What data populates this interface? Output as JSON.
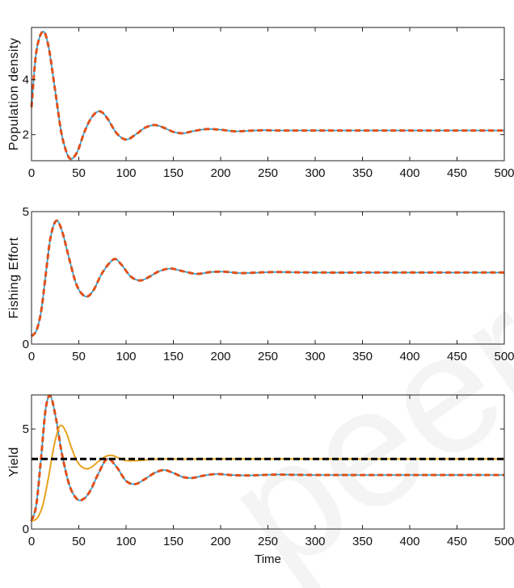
{
  "chart_data": [
    {
      "type": "line",
      "ylabel": "Population density",
      "xlabel": "",
      "xlim": [
        0,
        500
      ],
      "ylim": [
        1.05,
        5.9
      ],
      "xticks": [
        0,
        50,
        100,
        150,
        200,
        250,
        300,
        350,
        400,
        450,
        500
      ],
      "yticks": [
        2,
        4
      ],
      "grid": false,
      "series": [
        {
          "color": "#1f9fd9",
          "style": "solid",
          "x": [
            0,
            5,
            12,
            18,
            25,
            32,
            40,
            48,
            56,
            64,
            72,
            80,
            90,
            100,
            110,
            120,
            130,
            140,
            150,
            160,
            170,
            185,
            200,
            215,
            230,
            245,
            260,
            300,
            400,
            500
          ],
          "y": [
            3.0,
            5.0,
            5.75,
            5.2,
            3.6,
            2.0,
            1.15,
            1.35,
            2.1,
            2.65,
            2.85,
            2.6,
            2.05,
            1.82,
            2.0,
            2.25,
            2.35,
            2.25,
            2.1,
            2.05,
            2.12,
            2.2,
            2.18,
            2.12,
            2.14,
            2.16,
            2.15,
            2.15,
            2.15,
            2.15
          ]
        },
        {
          "color": "#e0501a",
          "style": "dashed",
          "x": [
            0,
            5,
            12,
            18,
            25,
            32,
            40,
            48,
            56,
            64,
            72,
            80,
            90,
            100,
            110,
            120,
            130,
            140,
            150,
            160,
            170,
            185,
            200,
            215,
            230,
            245,
            260,
            300,
            400,
            500
          ],
          "y": [
            3.0,
            5.0,
            5.75,
            5.2,
            3.6,
            2.0,
            1.15,
            1.35,
            2.1,
            2.65,
            2.85,
            2.6,
            2.05,
            1.82,
            2.0,
            2.25,
            2.35,
            2.25,
            2.1,
            2.05,
            2.12,
            2.2,
            2.18,
            2.12,
            2.14,
            2.16,
            2.15,
            2.15,
            2.15,
            2.15
          ]
        }
      ]
    },
    {
      "type": "line",
      "ylabel": "Fishing Effort",
      "xlabel": "",
      "xlim": [
        0,
        500
      ],
      "ylim": [
        0,
        5
      ],
      "xticks": [
        0,
        50,
        100,
        150,
        200,
        250,
        300,
        350,
        400,
        450,
        500
      ],
      "yticks": [
        0,
        5
      ],
      "grid": false,
      "series": [
        {
          "color": "#1f9fd9",
          "style": "solid",
          "x": [
            0,
            5,
            10,
            15,
            20,
            26,
            32,
            40,
            48,
            57,
            65,
            75,
            87,
            95,
            105,
            115,
            125,
            135,
            147,
            160,
            175,
            190,
            205,
            220,
            240,
            260,
            300,
            400,
            500
          ],
          "y": [
            0.3,
            0.5,
            1.2,
            2.6,
            4.0,
            4.65,
            4.3,
            3.2,
            2.2,
            1.8,
            2.0,
            2.7,
            3.2,
            3.0,
            2.55,
            2.4,
            2.55,
            2.75,
            2.85,
            2.75,
            2.65,
            2.72,
            2.73,
            2.68,
            2.7,
            2.72,
            2.7,
            2.7,
            2.7
          ]
        },
        {
          "color": "#e0501a",
          "style": "dashed",
          "x": [
            0,
            5,
            10,
            15,
            20,
            26,
            32,
            40,
            48,
            57,
            65,
            75,
            87,
            95,
            105,
            115,
            125,
            135,
            147,
            160,
            175,
            190,
            205,
            220,
            240,
            260,
            300,
            400,
            500
          ],
          "y": [
            0.3,
            0.5,
            1.2,
            2.6,
            4.0,
            4.65,
            4.3,
            3.2,
            2.2,
            1.8,
            2.0,
            2.7,
            3.2,
            3.0,
            2.55,
            2.4,
            2.55,
            2.75,
            2.85,
            2.75,
            2.65,
            2.72,
            2.73,
            2.68,
            2.7,
            2.72,
            2.7,
            2.7,
            2.7
          ]
        }
      ]
    },
    {
      "type": "line",
      "ylabel": "Yield",
      "xlabel": "Time",
      "xlim": [
        0,
        500
      ],
      "ylim": [
        0,
        6.7
      ],
      "xticks": [
        0,
        50,
        100,
        150,
        200,
        250,
        300,
        350,
        400,
        450,
        500
      ],
      "yticks": [
        0,
        5
      ],
      "grid": false,
      "series": [
        {
          "color": "#1f9fd9",
          "style": "solid",
          "x": [
            0,
            5,
            10,
            15,
            20,
            26,
            32,
            40,
            48,
            55,
            62,
            70,
            80,
            90,
            100,
            110,
            120,
            130,
            140,
            150,
            160,
            170,
            180,
            195,
            210,
            230,
            260,
            300,
            400,
            500
          ],
          "y": [
            0.4,
            1.2,
            3.5,
            6.0,
            6.65,
            5.5,
            3.8,
            2.2,
            1.5,
            1.5,
            1.9,
            2.7,
            3.5,
            3.1,
            2.4,
            2.25,
            2.5,
            2.8,
            2.95,
            2.8,
            2.6,
            2.55,
            2.65,
            2.75,
            2.7,
            2.68,
            2.72,
            2.7,
            2.7,
            2.7
          ]
        },
        {
          "color": "#e0501a",
          "style": "dashed",
          "x": [
            0,
            5,
            10,
            15,
            20,
            26,
            32,
            40,
            48,
            55,
            62,
            70,
            80,
            90,
            100,
            110,
            120,
            130,
            140,
            150,
            160,
            170,
            180,
            195,
            210,
            230,
            260,
            300,
            400,
            500
          ],
          "y": [
            0.4,
            1.2,
            3.5,
            6.0,
            6.65,
            5.5,
            3.8,
            2.2,
            1.5,
            1.5,
            1.9,
            2.7,
            3.5,
            3.1,
            2.4,
            2.25,
            2.5,
            2.8,
            2.95,
            2.8,
            2.6,
            2.55,
            2.65,
            2.75,
            2.7,
            2.68,
            2.72,
            2.7,
            2.7,
            2.7
          ]
        },
        {
          "color": "#e8a21e",
          "style": "solid",
          "x": [
            0,
            6,
            12,
            18,
            24,
            30,
            36,
            42,
            48,
            55,
            62,
            70,
            78,
            85,
            92,
            100,
            110,
            125,
            140,
            160,
            200,
            300,
            400,
            500
          ],
          "y": [
            0.4,
            0.55,
            1.2,
            2.6,
            4.2,
            5.15,
            4.9,
            4.1,
            3.4,
            3.05,
            3.05,
            3.35,
            3.62,
            3.68,
            3.55,
            3.42,
            3.42,
            3.47,
            3.5,
            3.49,
            3.5,
            3.5,
            3.5,
            3.5
          ]
        },
        {
          "color": "#000000",
          "style": "dashed-thick",
          "x": [
            0,
            500
          ],
          "y": [
            3.5,
            3.5
          ]
        }
      ]
    }
  ]
}
